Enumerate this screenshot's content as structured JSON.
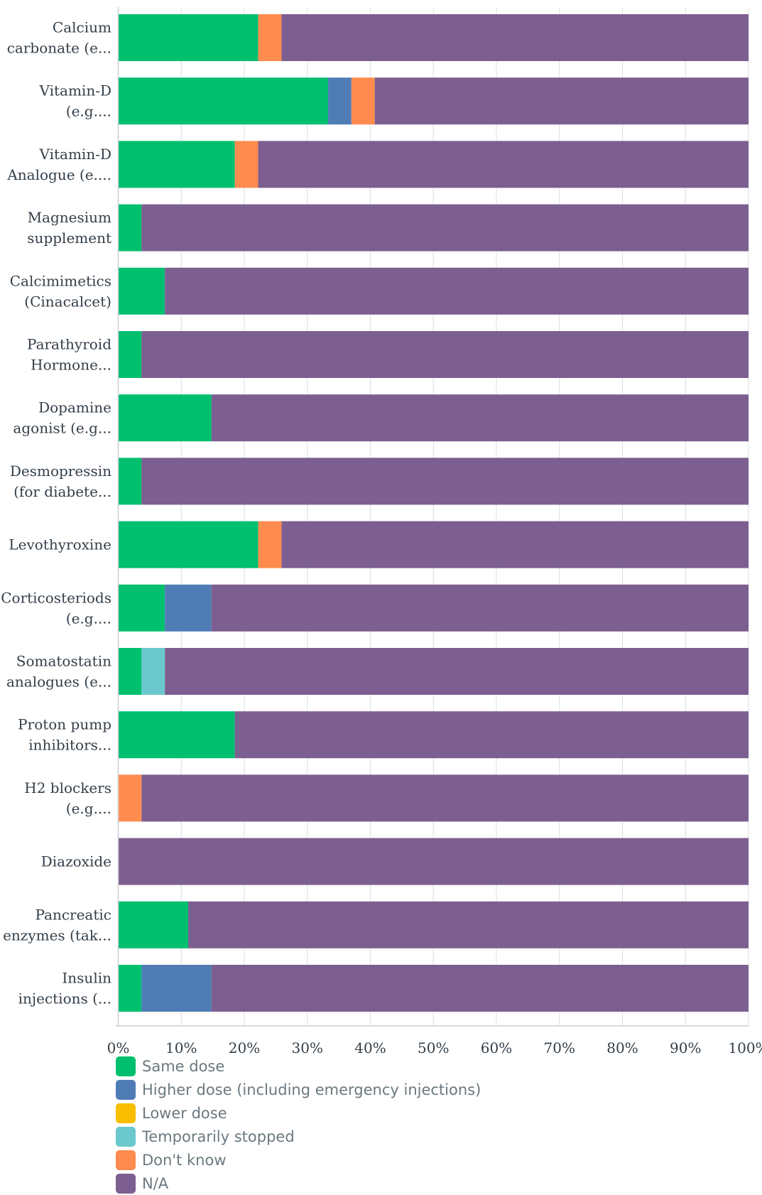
{
  "chart_data": {
    "type": "bar",
    "orientation": "horizontal",
    "stacked": true,
    "title": "",
    "xlabel": "",
    "ylabel": "",
    "xlim": [
      0,
      100
    ],
    "x_ticks": [
      "0%",
      "10%",
      "20%",
      "30%",
      "40%",
      "50%",
      "60%",
      "70%",
      "80%",
      "90%",
      "100%"
    ],
    "grid": true,
    "legend_position": "bottom",
    "categories": [
      [
        "Calcium",
        "carbonate (e..."
      ],
      [
        "Vitamin-D",
        "(e.g...."
      ],
      [
        "Vitamin-D",
        "Analogue (e...."
      ],
      [
        "Magnesium",
        "supplement"
      ],
      [
        "Calcimimetics",
        "(Cinacalcet)"
      ],
      [
        "Parathyroid",
        "Hormone..."
      ],
      [
        "Dopamine",
        "agonist (e.g..."
      ],
      [
        "Desmopressin",
        "(for diabete..."
      ],
      [
        "Levothyroxine"
      ],
      [
        "Corticosteriods",
        "(e.g...."
      ],
      [
        "Somatostatin",
        "analogues (e..."
      ],
      [
        "Proton pump",
        "inhibitors..."
      ],
      [
        "H2 blockers",
        "(e.g...."
      ],
      [
        "Diazoxide"
      ],
      [
        "Pancreatic",
        "enzymes (tak..."
      ],
      [
        "Insulin",
        "injections (..."
      ]
    ],
    "series": [
      {
        "name": "Same dose",
        "color": "#00bf6f",
        "values": [
          22.2,
          33.3,
          18.5,
          3.7,
          7.4,
          3.7,
          14.8,
          3.7,
          22.2,
          7.4,
          3.7,
          18.5,
          0,
          0,
          11.1,
          3.7
        ]
      },
      {
        "name": "Higher dose (including emergency injections)",
        "color": "#507cb6",
        "values": [
          0,
          3.7,
          0,
          0,
          0,
          0,
          0,
          0,
          0,
          7.4,
          0,
          0,
          0,
          0,
          0,
          11.1
        ]
      },
      {
        "name": "Lower dose",
        "color": "#f9be00",
        "values": [
          0,
          0,
          0,
          0,
          0,
          0,
          0,
          0,
          0,
          0,
          0,
          0,
          0,
          0,
          0,
          0
        ]
      },
      {
        "name": "Temporarily stopped",
        "color": "#6bc8cd",
        "values": [
          0,
          0,
          0,
          0,
          0,
          0,
          0,
          0,
          0,
          0,
          3.7,
          0,
          0,
          0,
          0,
          0
        ]
      },
      {
        "name": "Don't know",
        "color": "#ff8b4f",
        "values": [
          3.7,
          3.7,
          3.7,
          0,
          0,
          0,
          0,
          0,
          3.7,
          0,
          0,
          0,
          3.7,
          0,
          0,
          0
        ]
      },
      {
        "name": "N/A",
        "color": "#7d5e90",
        "values": [
          74.1,
          59.3,
          77.8,
          96.3,
          92.6,
          96.3,
          85.2,
          96.3,
          74.1,
          85.2,
          92.6,
          81.5,
          96.3,
          100,
          88.9,
          85.2
        ]
      }
    ]
  }
}
